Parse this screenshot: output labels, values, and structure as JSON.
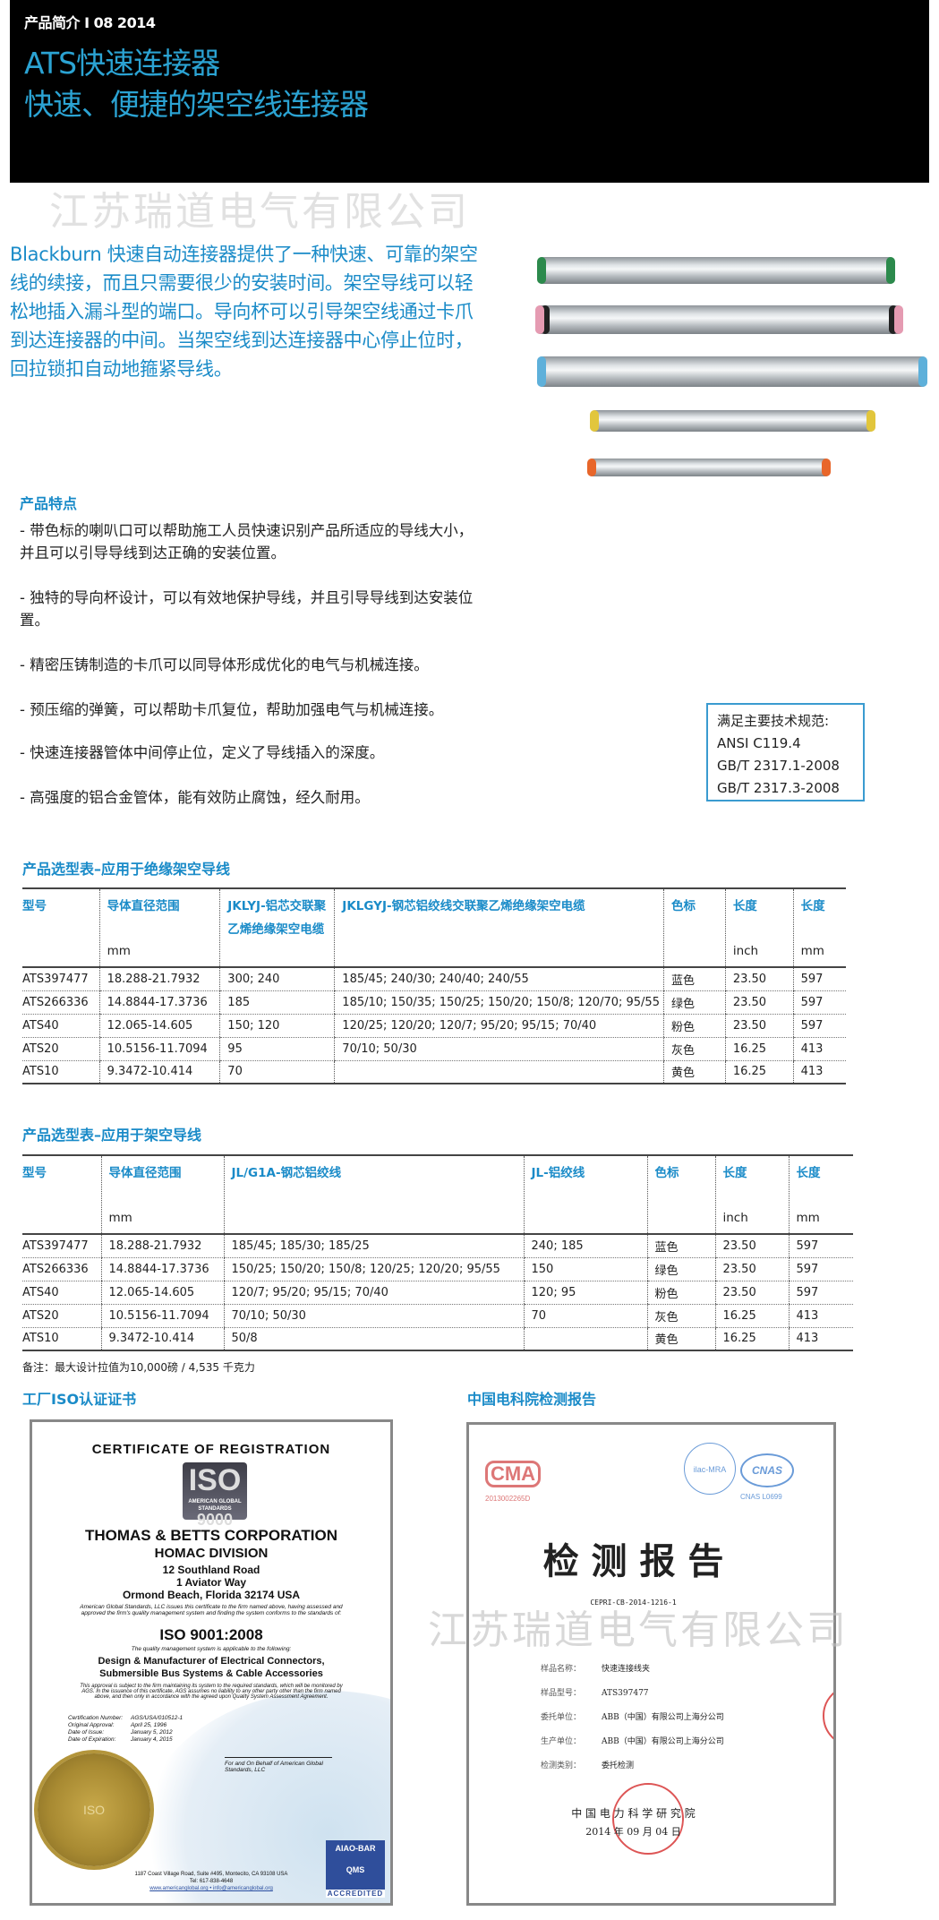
{
  "header": {
    "kicker": "产品简介 I 08 2014",
    "title": "ATS快速连接器",
    "subtitle": "快速、便捷的架空线连接器"
  },
  "watermark": "江苏瑞道电气有限公司",
  "intro": "Blackburn 快速自动连接器提供了一种快速、可靠的架空线的续接，而且只需要很少的安装时间。架空导线可以轻松地插入漏斗型的端口。导向杯可以引导架空线通过卡爪到达连接器的中间。当架空线到达连接器中心停止位时，回拉锁扣自动地箍紧导线。",
  "product_image": {
    "tubes": [
      {
        "color_name": "绿色",
        "color": "#2c8a4c"
      },
      {
        "color_name": "粉色",
        "color": "#e59bb2"
      },
      {
        "color_name": "蓝色",
        "color": "#5eb0da"
      },
      {
        "color_name": "黄色",
        "color": "#e2c63c"
      },
      {
        "color_name": "橙色",
        "color": "#e8662a"
      }
    ]
  },
  "features": {
    "title": "产品特点",
    "items": [
      "- 带色标的喇叭口可以帮助施工人员快速识别产品所适应的导线大小，并且可以引导导线到达正确的安装位置。",
      "- 独特的导向杯设计，可以有效地保护导线，并且引导导线到达安装位置。",
      "- 精密压铸制造的卡爪可以同导体形成优化的电气与机械连接。",
      "- 预压缩的弹簧，可以帮助卡爪复位，帮助加强电气与机械连接。",
      "- 快速连接器管体中间停止位，定义了导线插入的深度。",
      "- 高强度的铝合金管体，能有效防止腐蚀，经久耐用。"
    ]
  },
  "specs": {
    "title": "满足主要技术规范:",
    "items": [
      "ANSI  C119.4",
      "GB/T 2317.1-2008",
      "GB/T 2317.3-2008"
    ]
  },
  "table1": {
    "title": "产品选型表–应用于绝缘架空导线",
    "headers": [
      "型号",
      "导体直径范围",
      "JKLYJ-铝芯交联聚乙烯绝缘架空电缆",
      "JKLGYJ-钢芯铝绞线交联聚乙烯绝缘架空电缆",
      "色标",
      "长度",
      "长度"
    ],
    "units": [
      "",
      "mm",
      "",
      "",
      "",
      "inch",
      "mm"
    ],
    "rows": [
      [
        "ATS397477",
        "18.288-21.7932",
        "300; 240",
        "185/45; 240/30; 240/40; 240/55",
        "蓝色",
        "23.50",
        "597"
      ],
      [
        "ATS266336",
        "14.8844-17.3736",
        "185",
        "185/10; 150/35; 150/25; 150/20; 150/8; 120/70; 95/55",
        "绿色",
        "23.50",
        "597"
      ],
      [
        "ATS40",
        "12.065-14.605",
        "150; 120",
        "120/25; 120/20; 120/7; 95/20; 95/15; 70/40",
        "粉色",
        "23.50",
        "597"
      ],
      [
        "ATS20",
        "10.5156-11.7094",
        "95",
        "70/10; 50/30",
        "灰色",
        "16.25",
        "413"
      ],
      [
        "ATS10",
        "9.3472-10.414",
        "70",
        "",
        "黄色",
        "16.25",
        "413"
      ]
    ]
  },
  "table2": {
    "title": "产品选型表–应用于架空导线",
    "headers": [
      "型号",
      "导体直径范围",
      "JL/G1A-钢芯铝绞线",
      "JL-铝绞线",
      "色标",
      "长度",
      "长度"
    ],
    "units": [
      "",
      "mm",
      "",
      "",
      "",
      "inch",
      "mm"
    ],
    "rows": [
      [
        "ATS397477",
        "18.288-21.7932",
        "185/45; 185/30; 185/25",
        "240; 185",
        "蓝色",
        "23.50",
        "597"
      ],
      [
        "ATS266336",
        "14.8844-17.3736",
        "150/25; 150/20; 150/8; 120/25; 120/20; 95/55",
        "150",
        "绿色",
        "23.50",
        "597"
      ],
      [
        "ATS40",
        "12.065-14.605",
        "120/7; 95/20; 95/15; 70/40",
        "120; 95",
        "粉色",
        "23.50",
        "597"
      ],
      [
        "ATS20",
        "10.5156-11.7094",
        "70/10; 50/30",
        "70",
        "灰色",
        "16.25",
        "413"
      ],
      [
        "ATS10",
        "9.3472-10.414",
        "50/8",
        "",
        "黄色",
        "16.25",
        "413"
      ]
    ]
  },
  "note": "备注：最大设计拉值为10,000磅 / 4,535 千克力",
  "iso_section": {
    "title": "工厂ISO认证证书",
    "cert": {
      "arc": "CERTIFICATE OF REGISTRATION",
      "logo_top": "ISO",
      "logo_mid": "AMERICAN GLOBAL STANDARDS",
      "logo_bottom": "9000",
      "company": "THOMAS & BETTS CORPORATION",
      "division": "HOMAC DIVISION",
      "address": [
        "12 Southland Road",
        "1 Aviator Way",
        "Ormond Beach, Florida 32174 USA"
      ],
      "issue_text": "American Global Standards, LLC issues this certificate to the firm named above, having assessed and approved the firm's quality management system and finding the system conforms to the standards of:",
      "standard": "ISO 9001:2008",
      "scope_intro": "The quality management system is applicable to the following:",
      "scope": [
        "Design & Manufacturer of Electrical Connectors,",
        "Submersible Bus Systems & Cable Accessories"
      ],
      "disclaimer": "This approval is subject to the firm maintaining its system to the required standards, which will be monitored by AGS. In the issuance of this certificate, AGS assumes no liability to any other party other than the firm named above, and then only in accordance with the agreed upon Quality System Assessment Agreement.",
      "fields": [
        {
          "label": "Certification Number:",
          "value": "AGS/USA/010512-1"
        },
        {
          "label": "Original Approval:",
          "value": "April 25, 1996"
        },
        {
          "label": "Date of Issue:",
          "value": "January 5, 2012"
        },
        {
          "label": "Date of Expiration:",
          "value": "January 4, 2015"
        }
      ],
      "signature_caption": "For and On Behalf of American Global Standards, LLC",
      "seal_text": "ISO",
      "footer": [
        "1187 Coast Village Road, Suite #495, Montecito, CA 93108 USA",
        "Tel: 617-838-4648",
        "www.americanglobal.org • info@americanglobal.org"
      ],
      "badge": {
        "top": "AIAO-BAR",
        "mid": "QMS",
        "bottom": "ACCREDITED"
      }
    }
  },
  "report_section": {
    "title": "中国电科院检测报告",
    "report": {
      "cma": "CMA",
      "cma_number": "2013002265D",
      "ilac": "ilac-MRA",
      "cnas": "CNAS",
      "cnas_number": "CNAS L0699",
      "heading": "检 测 报 告",
      "number": "CEPRI-CB-2014-1216-1",
      "fields": [
        {
          "label": "样品名称：",
          "value": "快速连接线夹"
        },
        {
          "label": "样品型号：",
          "value": "ATS397477"
        },
        {
          "label": "委托单位：",
          "value": "ABB（中国）有限公司上海分公司"
        },
        {
          "label": "生产单位：",
          "value": "ABB（中国）有限公司上海分公司"
        },
        {
          "label": "检测类别：",
          "value": "委托检测"
        }
      ],
      "issuer": "中 国 电 力 科 学 研 究 院",
      "date": "2014 年 09 月 04 日"
    }
  }
}
